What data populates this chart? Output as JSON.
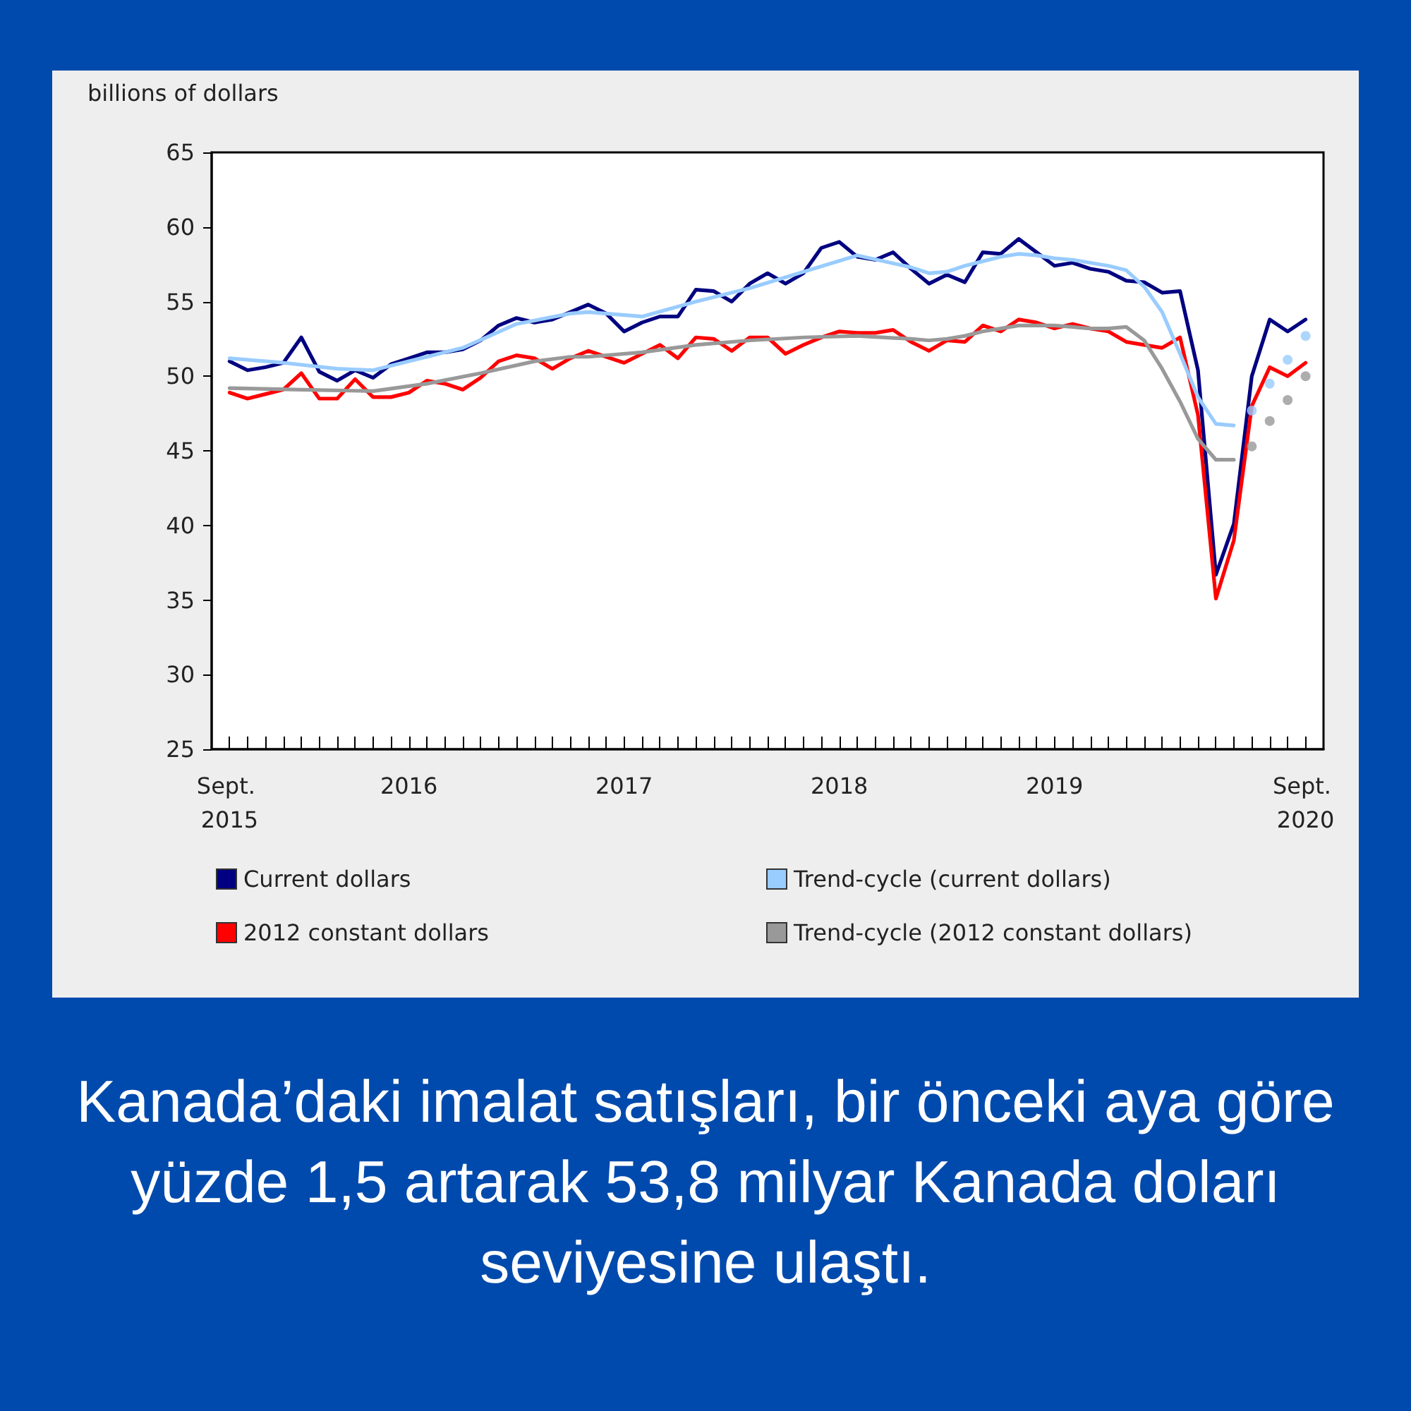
{
  "chart_data": {
    "type": "line",
    "ylabel": "billions of dollars",
    "annotations": [
      "Kanada’daki imalat satışları, bir önceki aya göre yüzde 1,5 artarak 53,8 milyar Kanada doları seviyesine ulaştı."
    ],
    "x": [
      "2015-09",
      "2015-10",
      "2015-11",
      "2015-12",
      "2016-01",
      "2016-02",
      "2016-03",
      "2016-04",
      "2016-05",
      "2016-06",
      "2016-07",
      "2016-08",
      "2016-09",
      "2016-10",
      "2016-11",
      "2016-12",
      "2017-01",
      "2017-02",
      "2017-03",
      "2017-04",
      "2017-05",
      "2017-06",
      "2017-07",
      "2017-08",
      "2017-09",
      "2017-10",
      "2017-11",
      "2017-12",
      "2018-01",
      "2018-02",
      "2018-03",
      "2018-04",
      "2018-05",
      "2018-06",
      "2018-07",
      "2018-08",
      "2018-09",
      "2018-10",
      "2018-11",
      "2018-12",
      "2019-01",
      "2019-02",
      "2019-03",
      "2019-04",
      "2019-05",
      "2019-06",
      "2019-07",
      "2019-08",
      "2019-09",
      "2019-10",
      "2019-11",
      "2019-12",
      "2020-01",
      "2020-02",
      "2020-03",
      "2020-04",
      "2020-05",
      "2020-06",
      "2020-07",
      "2020-08",
      "2020-09"
    ],
    "xlim": [
      "2015-08",
      "2020-10"
    ],
    "xticks": [
      {
        "value": "2015-09",
        "label": "Sept. 2015"
      },
      {
        "value": "2015-10",
        "label": null
      },
      {
        "value": "2015-11",
        "label": null
      },
      {
        "value": "2015-12",
        "label": null
      },
      {
        "value": "2016-01",
        "label": null
      },
      {
        "value": "2016-02",
        "label": null
      },
      {
        "value": "2016-03",
        "label": null
      },
      {
        "value": "2016-04",
        "label": null
      },
      {
        "value": "2016-05",
        "label": null
      },
      {
        "value": "2016-06",
        "label": null
      },
      {
        "value": "2016-07",
        "label": "2016"
      },
      {
        "value": "2016-08",
        "label": null
      },
      {
        "value": "2016-09",
        "label": null
      },
      {
        "value": "2016-10",
        "label": null
      },
      {
        "value": "2016-11",
        "label": null
      },
      {
        "value": "2016-12",
        "label": null
      },
      {
        "value": "2017-01",
        "label": null
      },
      {
        "value": "2017-02",
        "label": null
      },
      {
        "value": "2017-03",
        "label": null
      },
      {
        "value": "2017-04",
        "label": null
      },
      {
        "value": "2017-05",
        "label": null
      },
      {
        "value": "2017-06",
        "label": null
      },
      {
        "value": "2017-07",
        "label": "2017"
      },
      {
        "value": "2017-08",
        "label": null
      },
      {
        "value": "2017-09",
        "label": null
      },
      {
        "value": "2017-10",
        "label": null
      },
      {
        "value": "2017-11",
        "label": null
      },
      {
        "value": "2017-12",
        "label": null
      },
      {
        "value": "2018-01",
        "label": null
      },
      {
        "value": "2018-02",
        "label": null
      },
      {
        "value": "2018-03",
        "label": null
      },
      {
        "value": "2018-04",
        "label": null
      },
      {
        "value": "2018-05",
        "label": null
      },
      {
        "value": "2018-06",
        "label": null
      },
      {
        "value": "2018-07",
        "label": "2018"
      },
      {
        "value": "2018-08",
        "label": null
      },
      {
        "value": "2018-09",
        "label": null
      },
      {
        "value": "2018-10",
        "label": null
      },
      {
        "value": "2018-11",
        "label": null
      },
      {
        "value": "2018-12",
        "label": null
      },
      {
        "value": "2019-01",
        "label": null
      },
      {
        "value": "2019-02",
        "label": null
      },
      {
        "value": "2019-03",
        "label": null
      },
      {
        "value": "2019-04",
        "label": null
      },
      {
        "value": "2019-05",
        "label": null
      },
      {
        "value": "2019-06",
        "label": null
      },
      {
        "value": "2019-07",
        "label": "2019"
      },
      {
        "value": "2019-08",
        "label": null
      },
      {
        "value": "2019-09",
        "label": null
      },
      {
        "value": "2019-10",
        "label": null
      },
      {
        "value": "2019-11",
        "label": null
      },
      {
        "value": "2019-12",
        "label": null
      },
      {
        "value": "2020-01",
        "label": null
      },
      {
        "value": "2020-02",
        "label": null
      },
      {
        "value": "2020-03",
        "label": null
      },
      {
        "value": "2020-04",
        "label": null
      },
      {
        "value": "2020-05",
        "label": null
      },
      {
        "value": "2020-06",
        "label": null
      },
      {
        "value": "2020-07",
        "label": null
      },
      {
        "value": "2020-08",
        "label": null
      },
      {
        "value": "2020-09",
        "label": "Sept. 2020"
      }
    ],
    "ylim": [
      25,
      65
    ],
    "yticks": [
      25,
      30,
      35,
      40,
      45,
      50,
      55,
      60,
      65
    ],
    "legend": "bottom",
    "marker": "none",
    "line_style": "solid",
    "series": [
      {
        "name": "Current dollars",
        "color": "#000080",
        "values": [
          51.0,
          50.4,
          50.6,
          50.9,
          52.6,
          50.3,
          49.7,
          50.4,
          49.9,
          50.8,
          51.2,
          51.6,
          51.6,
          51.8,
          52.4,
          53.4,
          53.9,
          53.6,
          53.8,
          54.3,
          54.8,
          54.2,
          53.0,
          53.6,
          54.0,
          54.0,
          55.8,
          55.7,
          55.0,
          56.2,
          56.9,
          56.2,
          56.9,
          58.6,
          59.0,
          58.0,
          57.8,
          58.3,
          57.2,
          56.2,
          56.8,
          56.3,
          58.3,
          58.2,
          59.2,
          58.3,
          57.4,
          57.6,
          57.2,
          57.0,
          56.4,
          56.3,
          55.6,
          55.7,
          50.4,
          36.7,
          40.1,
          50.0,
          53.8,
          53.0,
          53.8
        ]
      },
      {
        "name": "2012 constant dollars",
        "color": "#ff0000",
        "values": [
          48.9,
          48.5,
          48.8,
          49.1,
          50.2,
          48.5,
          48.5,
          49.8,
          48.6,
          48.6,
          48.9,
          49.7,
          49.5,
          49.1,
          49.9,
          51.0,
          51.4,
          51.2,
          50.5,
          51.2,
          51.7,
          51.3,
          50.9,
          51.5,
          52.1,
          51.2,
          52.6,
          52.5,
          51.7,
          52.6,
          52.6,
          51.5,
          52.1,
          52.6,
          53.0,
          52.9,
          52.9,
          53.1,
          52.3,
          51.7,
          52.4,
          52.3,
          53.4,
          53.0,
          53.8,
          53.6,
          53.2,
          53.5,
          53.2,
          53.0,
          52.3,
          52.1,
          51.9,
          52.6,
          47.4,
          35.1,
          39.0,
          48.0,
          50.6,
          50.0,
          50.9
        ]
      },
      {
        "name": "Trend-cycle (current dollars)",
        "color": "#99ccff",
        "x": [
          "2015-09",
          "2015-12",
          "2016-03",
          "2016-05",
          "2016-07",
          "2016-10",
          "2017-01",
          "2017-04",
          "2017-05",
          "2017-08",
          "2017-11",
          "2018-02",
          "2018-05",
          "2018-08",
          "2018-11",
          "2018-12",
          "2019-01",
          "2019-02",
          "2019-03",
          "2019-04",
          "2019-05",
          "2019-06",
          "2019-07",
          "2019-08",
          "2019-09",
          "2019-10",
          "2019-11",
          "2019-12",
          "2020-01",
          "2020-02",
          "2020-03",
          "2020-04",
          "2020-05"
        ],
        "values": [
          51.2,
          50.9,
          50.5,
          50.4,
          51.0,
          51.9,
          53.5,
          54.2,
          54.3,
          54.0,
          55.0,
          55.9,
          57.0,
          58.1,
          57.3,
          56.9,
          57.0,
          57.4,
          57.7,
          58.0,
          58.2,
          58.1,
          57.9,
          57.8,
          57.6,
          57.4,
          57.1,
          56.0,
          54.3,
          51.5,
          48.6,
          46.8,
          46.7
        ]
      },
      {
        "name": "Trend-cycle (2012 constant dollars)",
        "color": "#999999",
        "x": [
          "2015-09",
          "2016-01",
          "2016-05",
          "2016-08",
          "2016-11",
          "2017-02",
          "2017-04",
          "2017-05",
          "2017-08",
          "2017-11",
          "2018-02",
          "2018-05",
          "2018-08",
          "2018-11",
          "2018-12",
          "2019-01",
          "2019-02",
          "2019-03",
          "2019-04",
          "2019-05",
          "2019-06",
          "2019-07",
          "2019-08",
          "2019-09",
          "2019-10",
          "2019-11",
          "2019-12",
          "2020-01",
          "2020-02",
          "2020-03",
          "2020-04",
          "2020-05"
        ],
        "values": [
          49.2,
          49.1,
          49.0,
          49.5,
          50.2,
          51.0,
          51.3,
          51.3,
          51.6,
          52.1,
          52.4,
          52.6,
          52.7,
          52.5,
          52.4,
          52.5,
          52.7,
          53.0,
          53.2,
          53.4,
          53.4,
          53.4,
          53.3,
          53.2,
          53.2,
          53.3,
          52.4,
          50.5,
          48.3,
          45.8,
          44.4,
          44.4
        ]
      },
      {
        "type": "scatter",
        "marker": "circle",
        "color": "#99ccff",
        "x": [
          "2020-06",
          "2020-07",
          "2020-08",
          "2020-09"
        ],
        "values": [
          47.7,
          49.5,
          51.1,
          52.7
        ]
      },
      {
        "type": "scatter",
        "marker": "circle",
        "color": "#999999",
        "x": [
          "2020-06",
          "2020-07",
          "2020-08",
          "2020-09"
        ],
        "values": [
          45.3,
          47.0,
          48.4,
          50.0
        ]
      }
    ]
  }
}
